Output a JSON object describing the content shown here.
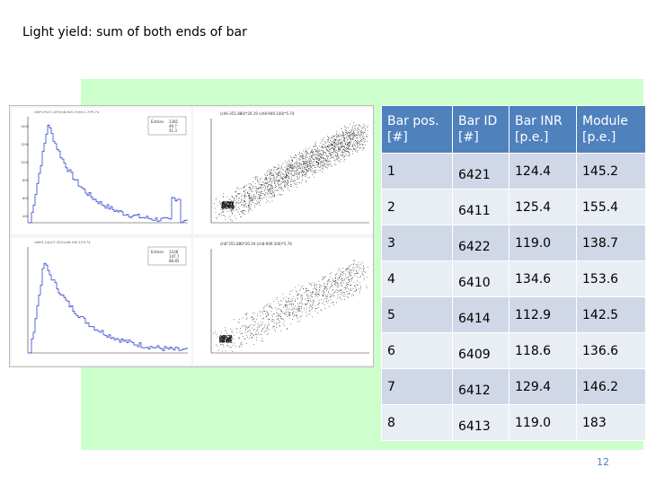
{
  "slide": {
    "title": "Light yield: sum of both ends of bar",
    "page_number": "12"
  },
  "plots": {
    "top_left": {
      "title": "ch6*-0*ch7-10*(ch8-949.1*ch9-1.7)*5.74",
      "stats_label": "Entries",
      "entries": "2381",
      "mean": "49.7",
      "rms": "41.3"
    },
    "top_right": {
      "title": "(ch6-351.880)*20.19 (ch8-949.100)*5.74"
    },
    "bottom_left": {
      "title": "ch6*0.14(ch7-10)*(ch8-949.1)*5.74",
      "stats_label": "Entries",
      "entries": "3338",
      "mean": "147.7",
      "rms": "88.85"
    },
    "bottom_right": {
      "title": "ch6*351.880*20.19 (ch8-949.100)*5.74"
    }
  },
  "table": {
    "headers": [
      "Bar pos.\n[#]",
      "Bar ID\n[#]",
      "Bar INR\n[p.e.]",
      "Module\n[p.e.]"
    ],
    "rows": [
      [
        "1",
        "6421",
        "124.4",
        "145.2"
      ],
      [
        "2",
        "6411",
        "125.4",
        "155.4"
      ],
      [
        "3",
        "6422",
        "119.0",
        "138.7"
      ],
      [
        "4",
        "6410",
        "134.6",
        "153.6"
      ],
      [
        "5",
        "6414",
        "112.9",
        "142.5"
      ],
      [
        "6",
        "6409",
        "118.6",
        "136.6"
      ],
      [
        "7",
        "6412",
        "129.4",
        "146.2"
      ],
      [
        "8",
        "6413",
        "119.0",
        "183"
      ]
    ]
  },
  "colors": {
    "panel": "#ccffcc",
    "header": "#4f81bd",
    "row_odd": "#d0d8e8",
    "row_even": "#e9edf4",
    "hist_line": "#3344cc"
  }
}
